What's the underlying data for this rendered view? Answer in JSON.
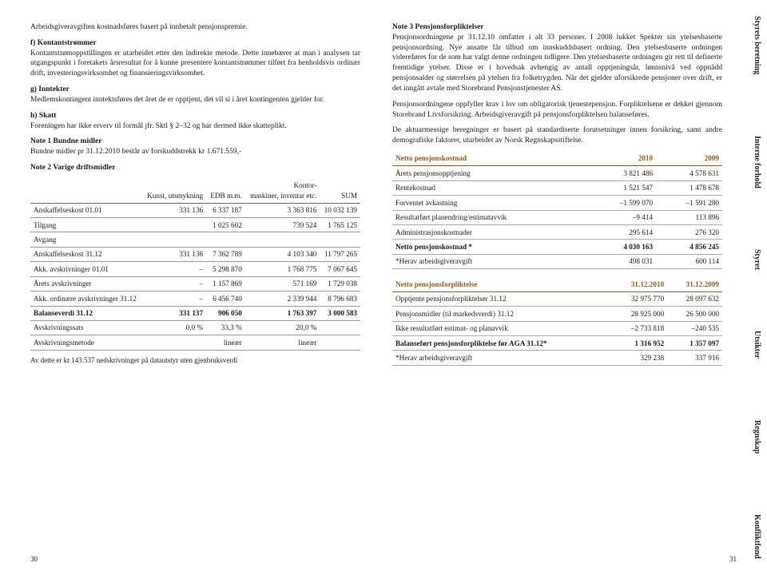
{
  "sideTabs": [
    "Styrets beretning",
    "Interne forhold",
    "Styret",
    "Utsikter",
    "Regnskap",
    "Konfliktfond"
  ],
  "pageLeft": "30",
  "pageRight": "31",
  "left": {
    "p1": "Arbeidsgiveravgiften kostnadsføres basert på innbetalt pensjonspremie.",
    "fHead": "f) Kontantstrømmer",
    "fBody": "Kontantstrømoppstillingen er utarbeidet etter den indirekte metode. Dette innebærer at man i analysen tar utgangspunkt i foretakets årsresultat for å kunne presentere kontantstrømmer tilført fra henholdsvis ordinær drift, investeringsvirksomhet og finansieringsvirksomhet.",
    "gHead": "g) Inntekter",
    "gBody": "Medlemskontingent inntektsføres det året de er opptjent, det vil si i året kontingenten gjelder for.",
    "hHead": "h) Skatt",
    "hBody": "Foreningen har ikke erverv til formål jfr. Sktl § 2–32 og har dermed ikke skatteplikt.",
    "note1Title": "Note 1 Bundne midler",
    "note1Body": "Bundne midler pr 31.12.2010 består av forskuddstrekk kr 1.671.559,-",
    "note2Title": "Note 2 Varige driftsmidler",
    "t1": {
      "cols": [
        "",
        "Kunst, utsmykning",
        "EDB m.m.",
        "Kontor-maskiner, inventar etc.",
        "SUM"
      ],
      "rows": [
        [
          "Anskaffelseskost 01.01",
          "331 136",
          "6 337 187",
          "3 363 816",
          "10 032 139"
        ],
        [
          "Tilgang",
          "",
          "1 025 602",
          "739 524",
          "1 765 125"
        ],
        [
          "Avgang",
          "",
          "",
          "",
          ""
        ],
        [
          "Anskaffelseskost 31.12",
          "331 136",
          "7 362 789",
          "4 103 340",
          "11 797 265"
        ],
        [
          "Akk. avskrivninger 01.01",
          "–",
          "5 298 870",
          "1 768 775",
          "7 067 645"
        ],
        [
          "Årets avskrivninger",
          "–",
          "1 157 869",
          "571 169",
          "1 729 038"
        ],
        [
          "Akk. ordinære avskrivninger 31.12",
          "–",
          "6 456 740",
          "2 339 944",
          "8 796 683"
        ],
        [
          "Balanseverdi 31.12",
          "331 137",
          "906 050",
          "1 763 397",
          "3 000 583"
        ],
        [
          "Avskrivningssats",
          "0,0 %",
          "33,3 %",
          "20,0 %",
          ""
        ],
        [
          "Avskrivningsmetode",
          "",
          "lineær",
          "lineær",
          ""
        ]
      ],
      "boldRows": [
        7
      ]
    },
    "foot1": "Av dette er kr 143.537 nedskrivninger på datautstyr uten gjenbruksverdi"
  },
  "right": {
    "note3Title": "Note 3 Pensjonsforpliktelser",
    "p1": "Pensjonsordningene pr 31.12.10 omfatter i alt 33 personer. I 2008 lukket Spekter sin ytelsesbaserte pensjonsordning. Nye ansatte får tilbud om innskuddsbasert ordning. Den ytelsesbaserte ordningen videreføres for de som har valgt denne ordningen tidligere. Den ytelsesbaserte ordningen gir rett til definerte fremtidige ytelser. Disse er i hovedsak avhengig av antall opptjeningsår, lønnsnivå ved oppnådd pensjonsalder og størrelsen på ytelsen fra folketrygden. Når det gjelder uforsikrede pensjoner over drift, er det inngått avtale med Storebrand Pensjonstjenester AS.",
    "p2": "Pensjonsordningene oppfyller krav i lov om obligatorisk tjenestepensjon. Forpliktelsene er dekket gjennom Storebrand Livsforsikring. Arbeidsgiveravgift på pensjonsforpliktelsen balanseføres.",
    "p3": "De aktuarmessige beregninger er basert på standardiserte forutsetninger innen forsikring, samt andre demografiske faktorer, utarbeidet av Norsk Regnskapsstiftelse.",
    "t2a": {
      "head": [
        "Netto pensjonskostnad",
        "2010",
        "2009"
      ],
      "rows": [
        [
          "Årets pensjonsopptjening",
          "3 821 486",
          "4 578 631"
        ],
        [
          "Rentekostnad",
          "1 521 547",
          "1 478 678"
        ],
        [
          "Forventet avkastning",
          "–1 599 070",
          "–1 591 280"
        ],
        [
          "Resultatført planendring/estimatavvik",
          "–9 414",
          "113 896"
        ],
        [
          "Administrasjonskostnader",
          "295 614",
          "276 320"
        ],
        [
          "Netto pensjonskostnad *",
          "4 030 163",
          "4 856 245"
        ],
        [
          "*Herav arbeidsgiveravgift",
          "498 031",
          "600 114"
        ]
      ],
      "boldRows": [
        5
      ]
    },
    "t2b": {
      "head": [
        "Netto pensjonsforpliktelse",
        "31.12.2010",
        "31.12.2009"
      ],
      "rows": [
        [
          "Opptjente pensjonsforpliktelser 31.12",
          "32 975 770",
          "28 097 632"
        ],
        [
          "Pensjonsmidler (til markedsverdi) 31.12",
          "28 925 000",
          "26 500 000"
        ],
        [
          "Ikke resultatført estimat- og planavvik",
          "–2 733 818",
          "–240 535"
        ],
        [
          "Balanseført pensjonsforpliktelse før AGA 31.12*",
          "1 316 952",
          "1 357 097"
        ],
        [
          "*Herav arbeidsgiveravgift",
          "329 238",
          "337 916"
        ]
      ],
      "boldRows": [
        3
      ]
    }
  }
}
